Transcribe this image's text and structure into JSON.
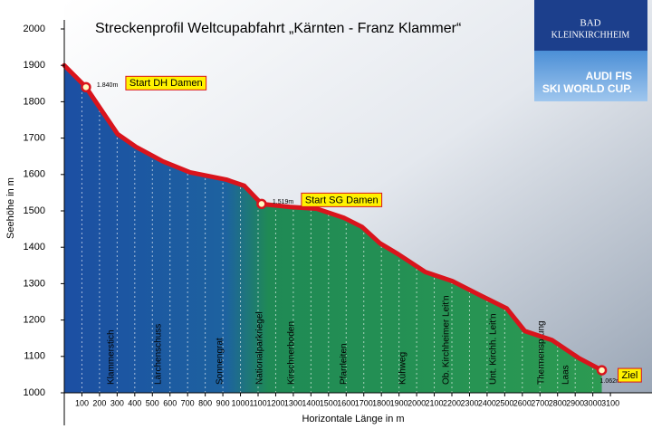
{
  "chart_data": {
    "type": "area",
    "title": "Streckenprofil Weltcupabfahrt „Kärnten - Franz Klammer“",
    "x_label": "Horizontale Länge in m",
    "y_label": "Seehöhe in m",
    "x": [
      0,
      123,
      303,
      406,
      560,
      714,
      919,
      1022,
      1120,
      1279,
      1433,
      1587,
      1690,
      1792,
      1895,
      2049,
      2203,
      2357,
      2511,
      2614,
      2768,
      2922,
      3051
    ],
    "values": [
      1900,
      1840,
      1711,
      1676,
      1636,
      1606,
      1586,
      1569,
      1519,
      1511,
      1506,
      1481,
      1456,
      1411,
      1381,
      1332,
      1307,
      1269,
      1232,
      1170,
      1145,
      1095,
      1062
    ],
    "color": "#d9141c",
    "xlim": [
      0,
      3300
    ],
    "ylim": [
      1000,
      2000
    ],
    "xticks": [
      100,
      200,
      300,
      400,
      500,
      600,
      700,
      800,
      900,
      1000,
      1100,
      1200,
      1300,
      1400,
      1500,
      1600,
      1700,
      1800,
      1900,
      2000,
      2100,
      2200,
      2300,
      2400,
      2500,
      2600,
      2700,
      2800,
      2900,
      3000,
      3100
    ],
    "yticks": [
      1000,
      1100,
      1200,
      1300,
      1400,
      1500,
      1600,
      1700,
      1800,
      1900,
      2000
    ],
    "grid": true,
    "markers": [
      {
        "label": "Start DH Damen",
        "x": 123,
        "y": 1840,
        "value_label": "1.840m"
      },
      {
        "label": "Start SG Damen",
        "x": 1120,
        "y": 1519,
        "value_label": "1.519m"
      },
      {
        "label": "Ziel",
        "x": 3051,
        "y": 1062,
        "value_label": "1.062m"
      }
    ],
    "sections": [
      "Klammerstich",
      "Lärchenschuss",
      "Sonnengrat",
      "Nationalparkriegel",
      "Kirschnerboden",
      "Pfarrleiten",
      "Kühweg",
      "Ob. Kirchheimer Leit'n",
      "Unt. Kirchh. Leit'n",
      "Thermensprung",
      "Laas"
    ]
  },
  "logo": {
    "line1": "BAD",
    "line2": "KLEINKIRCHHEIM",
    "line3": "AUDI FIS",
    "line4": "SKI WORLD CUP."
  }
}
